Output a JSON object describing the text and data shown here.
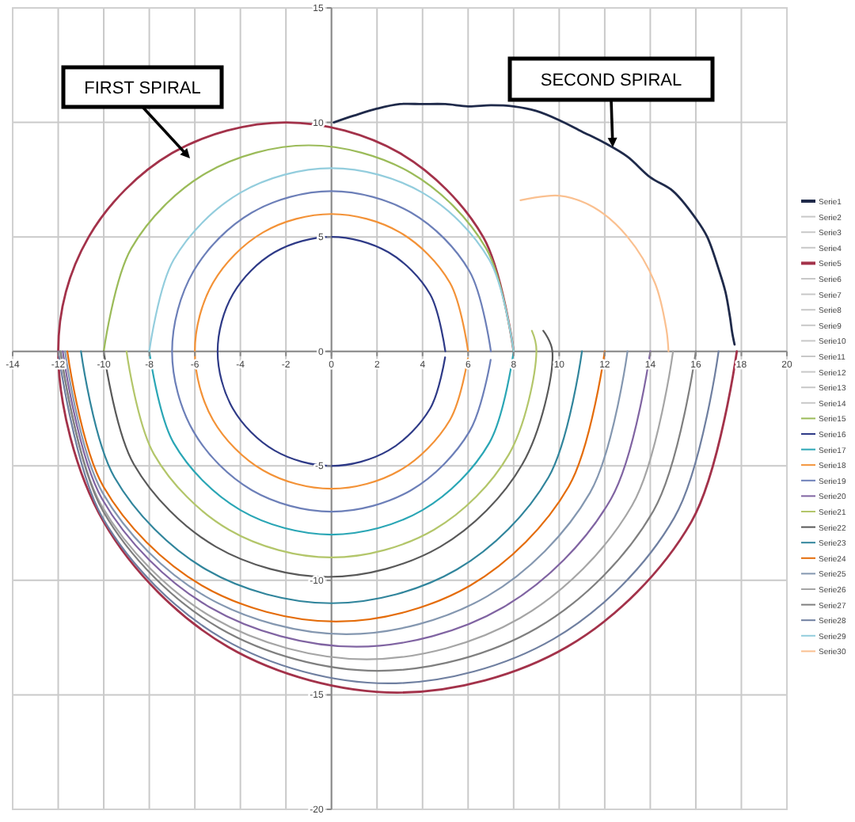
{
  "chart_data": {
    "type": "line",
    "xlim": [
      -14,
      20
    ],
    "ylim": [
      -20,
      15
    ],
    "xticks": [
      -14,
      -12,
      -10,
      -8,
      -6,
      -4,
      -2,
      0,
      2,
      4,
      6,
      8,
      10,
      12,
      14,
      16,
      18,
      20
    ],
    "yticks": [
      -20,
      -15,
      -10,
      -5,
      0,
      5,
      10,
      15
    ],
    "grid": true,
    "legend": "right",
    "marker": "none",
    "line_style": "solid",
    "annotations": [
      "FIRST SPIRAL",
      "SECOND SPIRAL"
    ],
    "series": [
      {
        "name": "Serie1",
        "color": "#1f2a4a",
        "x": [
          0.1,
          1,
          2,
          3,
          4,
          5,
          6,
          7,
          8,
          9,
          10,
          11,
          12,
          13,
          14,
          15,
          16,
          16.5,
          17,
          17.3,
          17.5,
          17.6,
          17.7
        ],
        "values": [
          10,
          10.3,
          10.6,
          10.8,
          10.8,
          10.8,
          10.7,
          10.75,
          10.7,
          10.5,
          10.1,
          9.6,
          9.1,
          8.5,
          7.6,
          7,
          5.8,
          5,
          3.6,
          2.6,
          1.5,
          0.8,
          0.3
        ]
      },
      {
        "name": "Serie2",
        "color": "#c8c8c8"
      },
      {
        "name": "Serie3",
        "color": "#c8c8c8"
      },
      {
        "name": "Serie4",
        "color": "#c8c8c8"
      },
      {
        "name": "Serie5",
        "color": "#a3324a",
        "x": [
          8,
          6.66,
          3,
          -2,
          -7,
          -10.66,
          -12,
          -10,
          -4.55,
          2.9,
          10.35,
          15.8,
          17.8
        ],
        "values": [
          0,
          5,
          8.66,
          10,
          8.66,
          5,
          0,
          -7.45,
          -12.9,
          -14.9,
          -12.9,
          -7.45,
          0
        ]
      },
      {
        "name": "Serie6",
        "color": "#c8c8c8"
      },
      {
        "name": "Serie7",
        "color": "#c8c8c8"
      },
      {
        "name": "Serie8",
        "color": "#c8c8c8"
      },
      {
        "name": "Serie9",
        "color": "#c8c8c8"
      },
      {
        "name": "Serie10",
        "color": "#c8c8c8"
      },
      {
        "name": "Serie11",
        "color": "#c8c8c8"
      },
      {
        "name": "Serie12",
        "color": "#c8c8c8"
      },
      {
        "name": "Serie13",
        "color": "#c8c8c8"
      },
      {
        "name": "Serie14",
        "color": "#c8c8c8"
      },
      {
        "name": "Serie15",
        "color": "#9bbb59",
        "x": [
          8,
          6.79,
          3.5,
          -1,
          -5.5,
          -8.79,
          -10
        ],
        "values": [
          0,
          4.5,
          7.79,
          9,
          7.79,
          4.5,
          0
        ]
      },
      {
        "name": "Serie16",
        "color": "#2e3a87",
        "x": [
          5,
          4.33,
          2.5,
          0,
          -2.5,
          -4.33,
          -5,
          -4.33,
          -2.5,
          0,
          2.5,
          4.33,
          4.99
        ],
        "values": [
          0,
          2.5,
          4.33,
          5,
          4.33,
          2.5,
          0,
          -2.5,
          -4.33,
          -5,
          -4.33,
          -2.5,
          -0.26
        ]
      },
      {
        "name": "Serie17",
        "color": "#2aa6b5",
        "x": [
          -8,
          -6.93,
          -4,
          0,
          4,
          6.93,
          8
        ],
        "values": [
          0,
          -4,
          -6.93,
          -8,
          -6.93,
          -4,
          0
        ]
      },
      {
        "name": "Serie18",
        "color": "#f39237",
        "x": [
          6,
          5.2,
          3,
          0,
          -3,
          -5.2,
          -6,
          -5.2,
          -3,
          0,
          3,
          5.2,
          5.99
        ],
        "values": [
          0,
          3,
          5.2,
          6,
          5.2,
          3,
          0,
          -3,
          -5.2,
          -6,
          -5.2,
          -3,
          -0.31
        ]
      },
      {
        "name": "Serie19",
        "color": "#6c7fb8",
        "x": [
          7,
          6.06,
          3.5,
          0,
          -3.5,
          -6.06,
          -7,
          -6.06,
          -3.5,
          0,
          3.5,
          6.06,
          6.99
        ],
        "values": [
          0,
          3.5,
          6.06,
          7,
          6.06,
          3.5,
          0,
          -3.5,
          -6.06,
          -7,
          -6.06,
          -3.5,
          -0.37
        ]
      },
      {
        "name": "Serie20",
        "color": "#8064a2",
        "x": [
          -11.8,
          -10.07,
          -5.35,
          1.1,
          7.55,
          12.27,
          14
        ],
        "values": [
          0,
          -6.45,
          -11.17,
          -12.9,
          -11.17,
          -6.45,
          0
        ]
      },
      {
        "name": "Serie21",
        "color": "#b3c66a",
        "x": [
          -9,
          -7.79,
          -4.5,
          0,
          4.5,
          7.79,
          9,
          8.8
        ],
        "values": [
          0,
          -4.5,
          -7.79,
          -9,
          -7.79,
          -4.5,
          0,
          0.9
        ]
      },
      {
        "name": "Serie22",
        "color": "#595959",
        "x": [
          -10,
          -8.68,
          -5.08,
          -0.15,
          4.78,
          8.38,
          9.7,
          9.3
        ],
        "values": [
          0,
          -4.93,
          -8.53,
          -9.85,
          -8.53,
          -4.93,
          0,
          0.9
        ]
      },
      {
        "name": "Serie23",
        "color": "#31859c",
        "x": [
          -11,
          -9.53,
          -5.5,
          0,
          5.5,
          9.53,
          11
        ],
        "values": [
          0,
          -5.5,
          -9.53,
          -11,
          -9.53,
          -5.5,
          0
        ]
      },
      {
        "name": "Serie24",
        "color": "#e46c0a",
        "x": [
          -11.6,
          -10.02,
          -5.7,
          0.2,
          6.1,
          10.42,
          12
        ],
        "values": [
          0,
          -5.9,
          -10.22,
          -11.8,
          -10.22,
          -5.9,
          0
        ]
      },
      {
        "name": "Serie25",
        "color": "#8497b0",
        "x": [
          -11.7,
          -10.05,
          -5.53,
          0.65,
          6.83,
          11.35,
          13
        ],
        "values": [
          0,
          -6.18,
          -10.7,
          -12.35,
          -10.7,
          -6.18,
          0
        ]
      },
      {
        "name": "Serie26",
        "color": "#a5a5a5",
        "x": [
          -11.9,
          -10.1,
          -5.18,
          1.55,
          8.28,
          13.2,
          15
        ],
        "values": [
          0,
          -6.73,
          -11.65,
          -13.45,
          -11.65,
          -6.73,
          0
        ]
      },
      {
        "name": "Serie27",
        "color": "#7f7f7f",
        "x": [
          -11.9,
          -10.03,
          -4.93,
          2.05,
          9.03,
          14.13,
          16
        ],
        "values": [
          0,
          -6.98,
          -12.08,
          -13.95,
          -12.08,
          -6.98,
          0
        ]
      },
      {
        "name": "Serie28",
        "color": "#6f7fa0",
        "x": [
          -12,
          -10.06,
          -4.75,
          2.5,
          9.75,
          15.06,
          17
        ],
        "values": [
          0,
          -7.25,
          -12.56,
          -14.5,
          -12.56,
          -7.25,
          0
        ]
      },
      {
        "name": "Serie29",
        "color": "#93cddd",
        "x": [
          8,
          6.93,
          4,
          0,
          -4,
          -6.93,
          -8
        ],
        "values": [
          0,
          4,
          6.93,
          8,
          6.93,
          4,
          0
        ]
      },
      {
        "name": "Serie30",
        "color": "#fac090",
        "x": [
          8.3,
          10,
          11.5,
          13,
          14.2,
          14.7,
          14.8
        ],
        "values": [
          6.6,
          6.8,
          6.3,
          5,
          3,
          1,
          0
        ]
      }
    ]
  }
}
